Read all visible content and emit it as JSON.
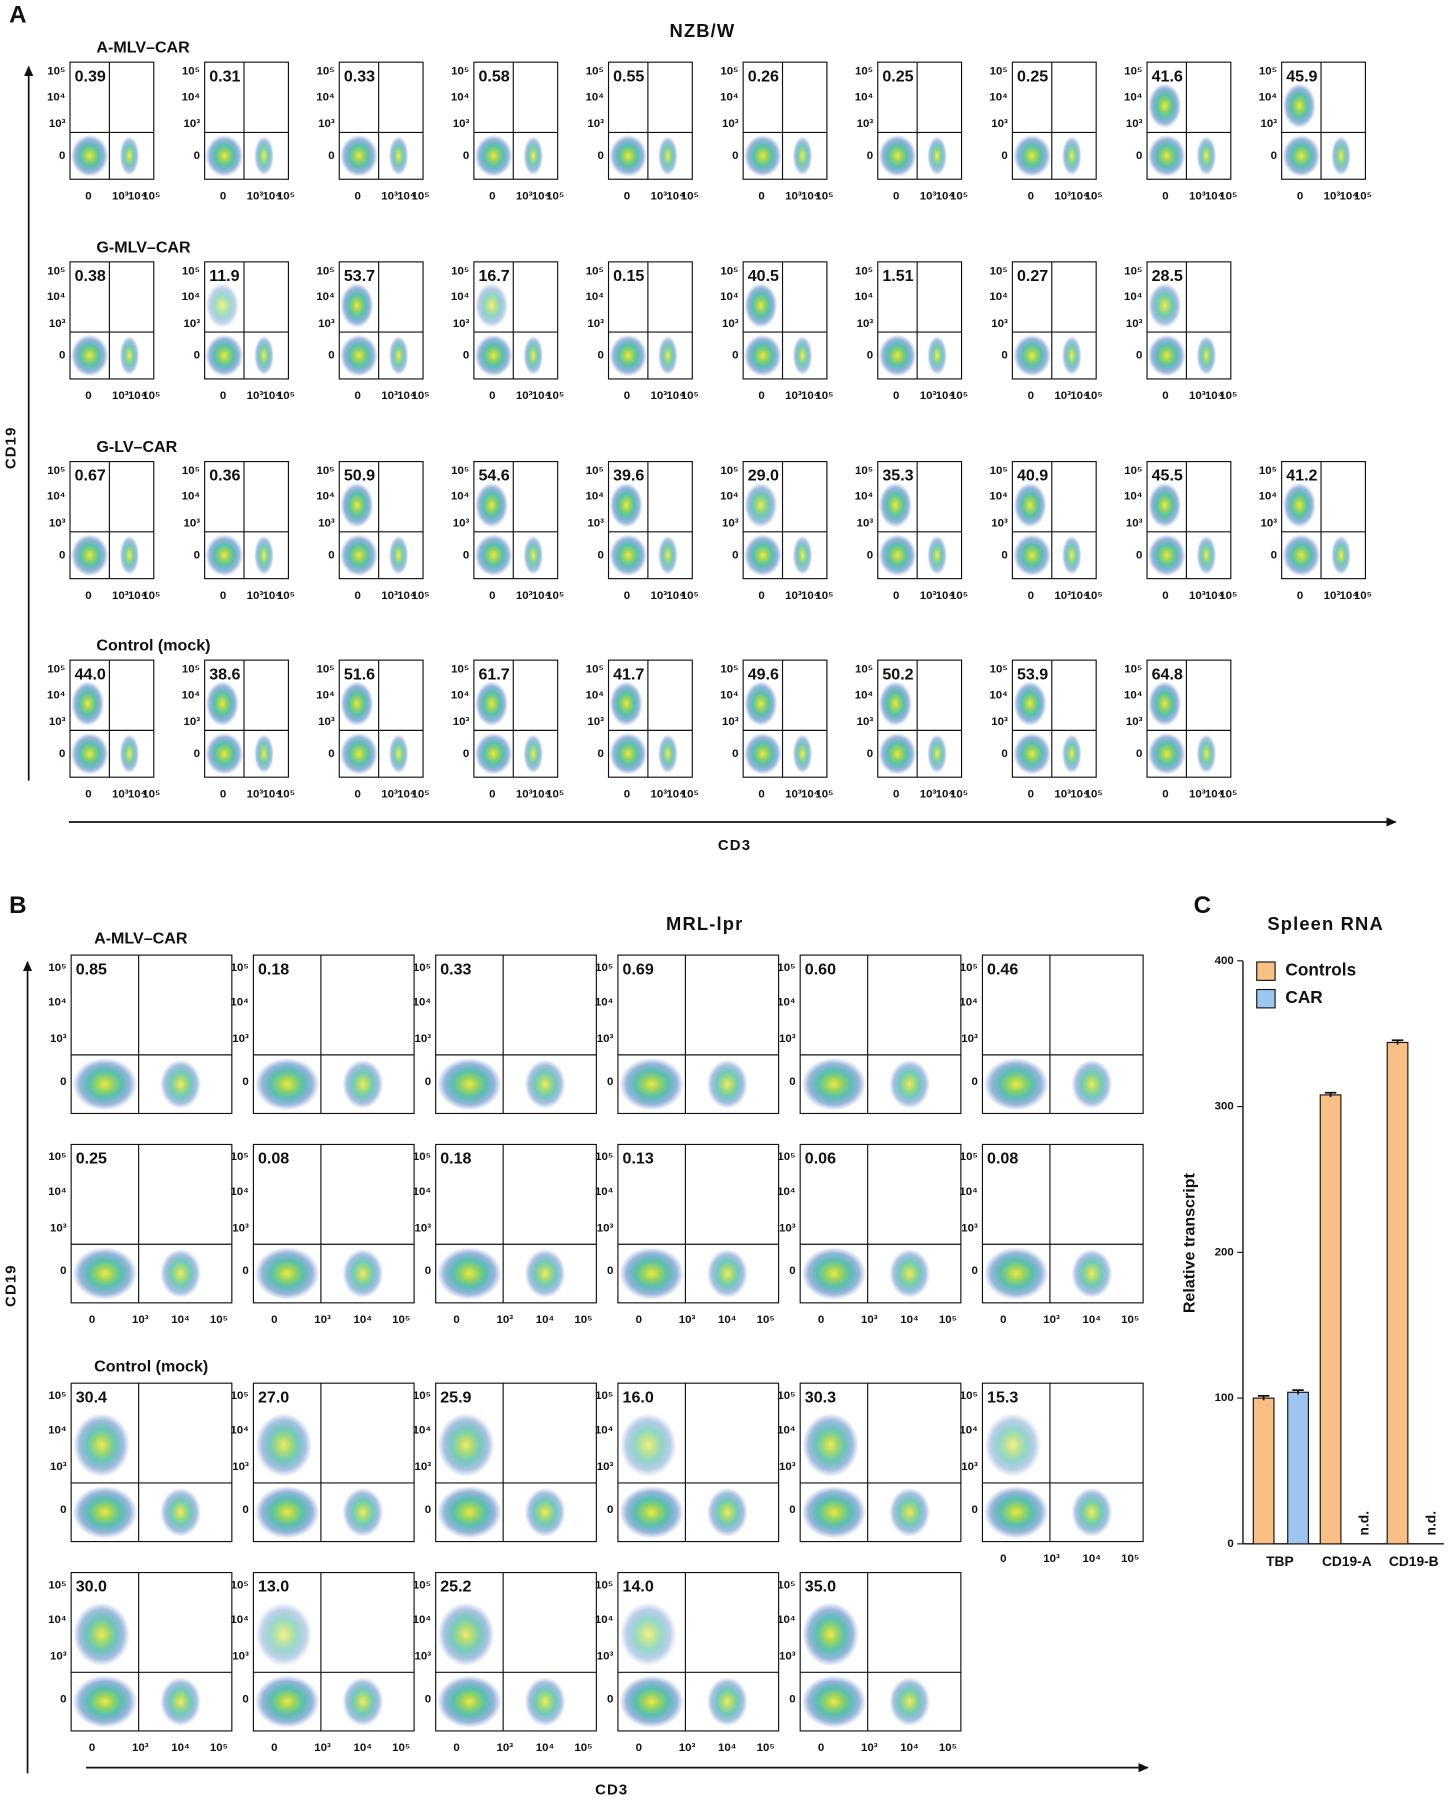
{
  "panel_a": {
    "label": "A",
    "title": "NZB/W",
    "x_axis_label": "CD3",
    "y_axis_label": "CD19",
    "x_ticks": [
      "0",
      "10³",
      "10⁴",
      "10⁵"
    ],
    "y_ticks": [
      "10⁵",
      "10⁴",
      "10³",
      "0"
    ],
    "rows": [
      {
        "label": "A-MLV–CAR",
        "values": [
          "0.39",
          "0.31",
          "0.33",
          "0.58",
          "0.55",
          "0.26",
          "0.25",
          "0.25",
          "41.6",
          "45.9"
        ]
      },
      {
        "label": "G-MLV–CAR",
        "values": [
          "0.38",
          "11.9",
          "53.7",
          "16.7",
          "0.15",
          "40.5",
          "1.51",
          "0.27",
          "28.5"
        ]
      },
      {
        "label": "G-LV–CAR",
        "values": [
          "0.67",
          "0.36",
          "50.9",
          "54.6",
          "39.6",
          "29.0",
          "35.3",
          "40.9",
          "45.5",
          "41.2"
        ]
      },
      {
        "label": "Control (mock)",
        "values": [
          "44.0",
          "38.6",
          "51.6",
          "61.7",
          "41.7",
          "49.6",
          "50.2",
          "53.9",
          "64.8"
        ]
      }
    ]
  },
  "panel_b": {
    "label": "B",
    "title": "MRL-lpr",
    "x_axis_label": "CD3",
    "y_axis_label": "CD19",
    "x_ticks": [
      "0",
      "10³",
      "10⁴",
      "10⁵"
    ],
    "y_ticks": [
      "10⁵",
      "10⁴",
      "10³",
      "0"
    ],
    "rows": [
      {
        "label": "A-MLV–CAR",
        "values": [
          "0.85",
          "0.18",
          "0.33",
          "0.69",
          "0.60",
          "0.46"
        ]
      },
      {
        "values": [
          "0.25",
          "0.08",
          "0.18",
          "0.13",
          "0.06",
          "0.08"
        ]
      },
      {
        "label": "Control (mock)",
        "values": [
          "30.4",
          "27.0",
          "25.9",
          "16.0",
          "30.3",
          "15.3"
        ]
      },
      {
        "values": [
          "30.0",
          "13.0",
          "25.2",
          "14.0",
          "35.0"
        ]
      }
    ]
  },
  "chart_data": {
    "type": "bar",
    "panel_label": "C",
    "title": "Spleen RNA",
    "y_axis_label": "Relative transcript",
    "categories": [
      "TBP",
      "CD19-A",
      "CD19-B"
    ],
    "series": [
      {
        "name": "Controls",
        "color": "#f9bf85",
        "values": [
          100,
          308,
          344
        ],
        "errors": [
          1.5,
          1.5,
          1.5
        ]
      },
      {
        "name": "CAR",
        "color": "#9ec5f0",
        "values": [
          104,
          null,
          null
        ],
        "errors": [
          1.5,
          null,
          null
        ],
        "value_labels": [
          null,
          "n.d.",
          "n.d."
        ]
      }
    ],
    "ylim": [
      0,
      400
    ],
    "yticks": [
      0,
      100,
      200,
      300,
      400
    ],
    "legend": "upper left"
  }
}
